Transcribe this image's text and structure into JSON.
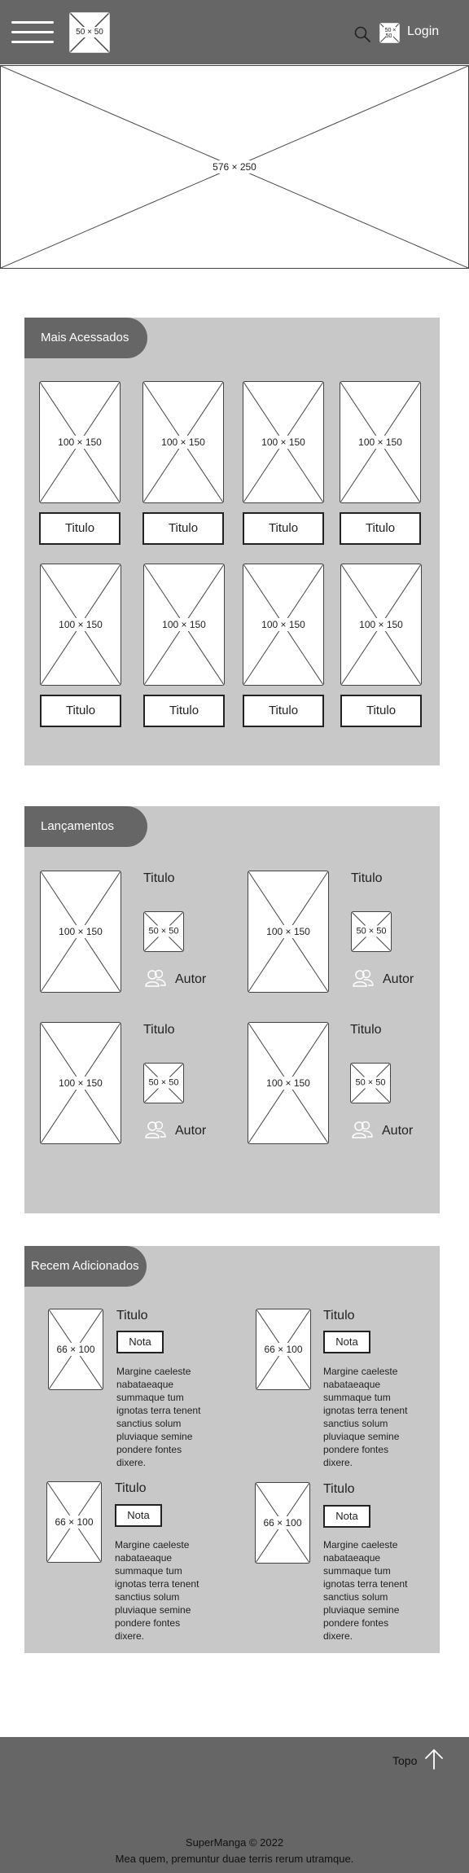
{
  "header": {
    "logo_placeholder": "50 × 50",
    "avatar_placeholder": "50 × 50",
    "login_label": "Login",
    "menu_icon": "hamburger-icon",
    "search_icon": "search-icon"
  },
  "banner": {
    "placeholder": "576 × 250"
  },
  "most_accessed": {
    "heading": "Mais Acessados",
    "items": [
      {
        "image": "100 × 150",
        "title": "Titulo"
      },
      {
        "image": "100 × 150",
        "title": "Titulo"
      },
      {
        "image": "100 × 150",
        "title": "Titulo"
      },
      {
        "image": "100 × 150",
        "title": "Titulo"
      },
      {
        "image": "100 × 150",
        "title": "Titulo"
      },
      {
        "image": "100 × 150",
        "title": "Titulo"
      },
      {
        "image": "100 × 150",
        "title": "Titulo"
      },
      {
        "image": "100 × 150",
        "title": "Titulo"
      }
    ]
  },
  "releases": {
    "heading": "Lançamentos",
    "items": [
      {
        "image": "100 × 150",
        "title": "Titulo",
        "thumb": "50 × 50",
        "author": "Autor"
      },
      {
        "image": "100 × 150",
        "title": "Titulo",
        "thumb": "50 × 50",
        "author": "Autor"
      },
      {
        "image": "100 × 150",
        "title": "Titulo",
        "thumb": "50 × 50",
        "author": "Autor"
      },
      {
        "image": "100 × 150",
        "title": "Titulo",
        "thumb": "50 × 50",
        "author": "Autor"
      }
    ]
  },
  "recent": {
    "heading": "Recem Adicionados",
    "items": [
      {
        "image": "66 × 100",
        "title": "Titulo",
        "rating": "Nota",
        "description": "Margine caeleste nabataeaque summaque tum ignotas terra tenent sanctius solum pluviaque semine pondere fontes dixere."
      },
      {
        "image": "66 × 100",
        "title": "Titulo",
        "rating": "Nota",
        "description": "Margine caeleste nabataeaque summaque tum ignotas terra tenent sanctius solum pluviaque semine pondere fontes dixere."
      },
      {
        "image": "66 × 100",
        "title": "Titulo",
        "rating": "Nota",
        "description": "Margine caeleste nabataeaque summaque tum ignotas terra tenent sanctius solum pluviaque semine pondere fontes dixere."
      },
      {
        "image": "66 × 100",
        "title": "Titulo",
        "rating": "Nota",
        "description": "Margine caeleste nabataeaque summaque tum ignotas terra tenent sanctius solum pluviaque semine pondere fontes dixere."
      }
    ]
  },
  "footer": {
    "top_label": "Topo",
    "top_icon": "arrow-up-icon",
    "copyright": "SuperManga © 2022",
    "tagline": "Mea quem, premuntur duae terris rerum utramque."
  },
  "colors": {
    "header_bg": "#666666",
    "panel_bg": "#c8c8c8",
    "footer_bg": "#666666"
  }
}
